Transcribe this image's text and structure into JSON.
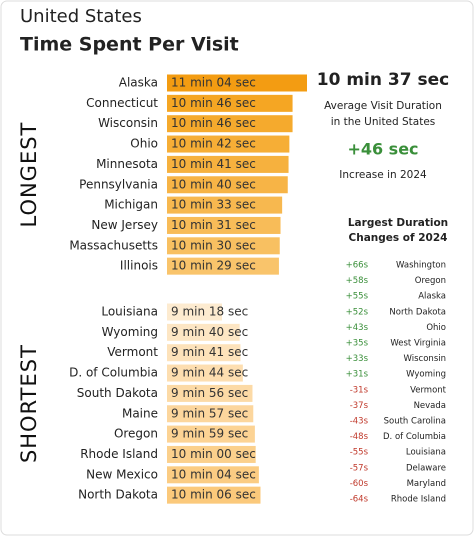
{
  "header": {
    "title": "United States",
    "subtitle": "Time Spent Per Visit"
  },
  "chart_data": [
    {
      "type": "bar",
      "orientation": "horizontal",
      "group_label": "LONGEST",
      "categories": [
        "Alaska",
        "Connecticut",
        "Wisconsin",
        "Ohio",
        "Minnesota",
        "Pennsylvania",
        "Michigan",
        "New Jersey",
        "Massachusetts",
        "Illinois"
      ],
      "values": [
        664,
        646,
        646,
        642,
        641,
        640,
        633,
        631,
        630,
        629
      ],
      "value_labels": [
        "11 min 04 sec",
        "10 min 46 sec",
        "10 min 46 sec",
        "10 min 42 sec",
        "10 min 41 sec",
        "10 min 40 sec",
        "10 min 33 sec",
        "10 min 31 sec",
        "10 min 30 sec",
        "10 min 29 sec"
      ],
      "colors": [
        "#f39c12",
        "#f5a623",
        "#f5aa2d",
        "#f6ae36",
        "#f6b13e",
        "#f7b446",
        "#f7b84f",
        "#f8bc58",
        "#f8c061",
        "#f9c46b"
      ]
    },
    {
      "type": "bar",
      "orientation": "horizontal",
      "group_label": "SHORTEST",
      "categories": [
        "Louisiana",
        "Wyoming",
        "Vermont",
        "D. of Columbia",
        "South Dakota",
        "Maine",
        "Oregon",
        "Rhode Island",
        "New Mexico",
        "North Dakota"
      ],
      "values": [
        558,
        580,
        581,
        584,
        596,
        597,
        599,
        600,
        604,
        606
      ],
      "value_labels": [
        "9 min 18 sec",
        "9 min 40 sec",
        "9 min 41 sec",
        "9 min 44 sec",
        "9 min 56 sec",
        "9 min 57 sec",
        "9 min 59 sec",
        "10 min 00 sec",
        "10 min 04 sec",
        "10 min 06 sec"
      ],
      "colors": [
        "#fdebd0",
        "#fde6c4",
        "#fde2ba",
        "#fddeb0",
        "#fcdaa6",
        "#fcd69d",
        "#fcd394",
        "#fbd08c",
        "#fbcc83",
        "#fbc97b"
      ]
    }
  ],
  "summary": {
    "average": "10 min 37 sec",
    "average_label": [
      "Average Visit Duration",
      "in the United States"
    ],
    "change": "+46 sec",
    "change_label": "Increase in 2024"
  },
  "changes": {
    "title": [
      "Largest Duration",
      "Changes of 2024"
    ],
    "rows": [
      [
        "+66s",
        "Washington"
      ],
      [
        "+58s",
        "Oregon"
      ],
      [
        "+55s",
        "Alaska"
      ],
      [
        "+52s",
        "North Dakota"
      ],
      [
        "+43s",
        "Ohio"
      ],
      [
        "+35s",
        "West Virginia"
      ],
      [
        "+33s",
        "Wisconsin"
      ],
      [
        "+31s",
        "Wyoming"
      ],
      [
        "-31s",
        "Vermont"
      ],
      [
        "-37s",
        "Nevada"
      ],
      [
        "-43s",
        "South Carolina"
      ],
      [
        "-48s",
        "D. of Columbia"
      ],
      [
        "-55s",
        "Louisiana"
      ],
      [
        "-57s",
        "Delaware"
      ],
      [
        "-60s",
        "Maryland"
      ],
      [
        "-64s",
        "Rhode Island"
      ]
    ]
  }
}
